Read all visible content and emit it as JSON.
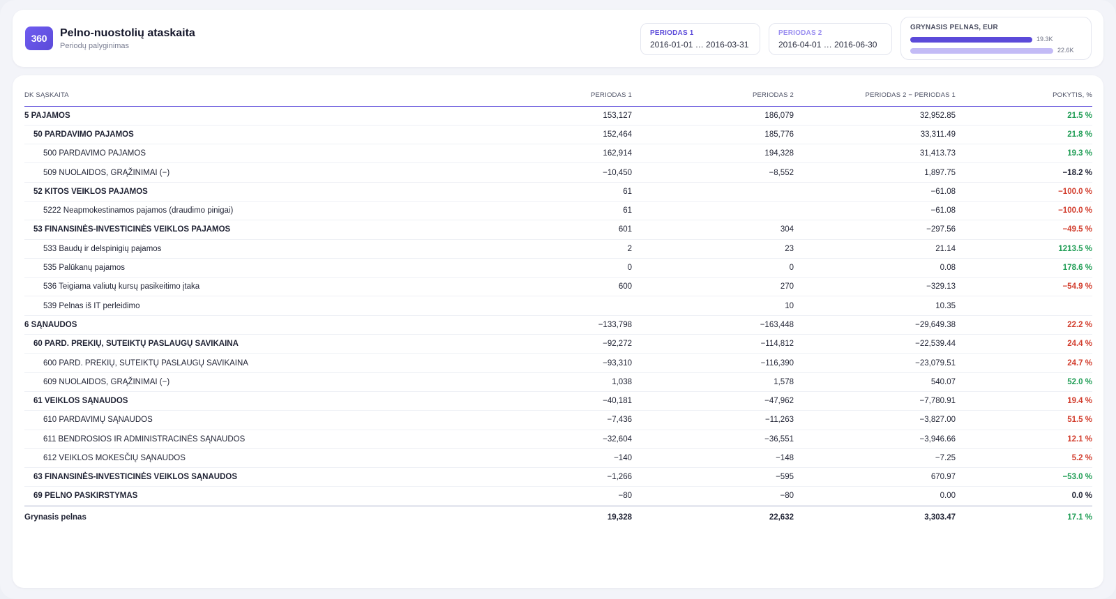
{
  "header": {
    "logo": "360",
    "title": "Pelno-nuostolių ataskaita",
    "subtitle": "Periodų palyginimas",
    "period1": {
      "label": "PERIODAS 1",
      "range": "2016-01-01 … 2016-03-31"
    },
    "period2": {
      "label": "PERIODAS 2",
      "range": "2016-04-01 … 2016-06-30"
    },
    "net_profit": {
      "label": "GRYNASIS PELNAS, EUR",
      "bars": [
        {
          "value_label": "19.3K",
          "value": 19328,
          "color": "#5b4ad9"
        },
        {
          "value_label": "22.6K",
          "value": 22632,
          "color": "#c3bbf6"
        }
      ]
    }
  },
  "colors": {
    "accent": "#5b4ad9",
    "accent_light": "#c3bbf6",
    "positive": "#1f9d55",
    "negative": "#d23c2c"
  },
  "table": {
    "columns": [
      "DK SĄSKAITA",
      "PERIODAS 1",
      "PERIODAS 2",
      "PERIODAS 2 − PERIODAS 1",
      "POKYTIS, %"
    ],
    "rows": [
      {
        "level": 1,
        "account": "5 PAJAMOS",
        "p1": "153,127",
        "p2": "186,079",
        "diff": "32,952.85",
        "pct": "21.5 %",
        "tone": "pos"
      },
      {
        "level": 2,
        "account": "50 PARDAVIMO PAJAMOS",
        "p1": "152,464",
        "p2": "185,776",
        "diff": "33,311.49",
        "pct": "21.8 %",
        "tone": "pos"
      },
      {
        "level": 3,
        "account": "500 PARDAVIMO PAJAMOS",
        "p1": "162,914",
        "p2": "194,328",
        "diff": "31,413.73",
        "pct": "19.3 %",
        "tone": "pos"
      },
      {
        "level": 3,
        "account": "509 NUOLAIDOS, GRĄŽINIMAI (−)",
        "p1": "−10,450",
        "p2": "−8,552",
        "diff": "1,897.75",
        "pct": "−18.2 %",
        "tone": "neutral"
      },
      {
        "level": 2,
        "account": "52 KITOS VEIKLOS PAJAMOS",
        "p1": "61",
        "p2": "",
        "diff": "−61.08",
        "pct": "−100.0 %",
        "tone": "neg"
      },
      {
        "level": 3,
        "account": "5222 Neapmokestinamos pajamos (draudimo pinigai)",
        "p1": "61",
        "p2": "",
        "diff": "−61.08",
        "pct": "−100.0 %",
        "tone": "neg"
      },
      {
        "level": 2,
        "account": "53 FINANSINĖS-INVESTICINĖS VEIKLOS PAJAMOS",
        "p1": "601",
        "p2": "304",
        "diff": "−297.56",
        "pct": "−49.5 %",
        "tone": "neg"
      },
      {
        "level": 3,
        "account": "533 Baudų ir delspinigių pajamos",
        "p1": "2",
        "p2": "23",
        "diff": "21.14",
        "pct": "1213.5 %",
        "tone": "pos"
      },
      {
        "level": 3,
        "account": "535 Palūkanų pajamos",
        "p1": "0",
        "p2": "0",
        "diff": "0.08",
        "pct": "178.6 %",
        "tone": "pos"
      },
      {
        "level": 3,
        "account": "536 Teigiama valiutų kursų pasikeitimo įtaka",
        "p1": "600",
        "p2": "270",
        "diff": "−329.13",
        "pct": "−54.9 %",
        "tone": "neg"
      },
      {
        "level": 3,
        "account": "539 Pelnas iš IT perleidimo",
        "p1": "",
        "p2": "10",
        "diff": "10.35",
        "pct": "",
        "tone": "neutral"
      },
      {
        "level": 1,
        "account": "6 SĄNAUDOS",
        "p1": "−133,798",
        "p2": "−163,448",
        "diff": "−29,649.38",
        "pct": "22.2 %",
        "tone": "neg"
      },
      {
        "level": 2,
        "account": "60 PARD. PREKIŲ, SUTEIKTŲ PASLAUGŲ SAVIKAINA",
        "p1": "−92,272",
        "p2": "−114,812",
        "diff": "−22,539.44",
        "pct": "24.4 %",
        "tone": "neg"
      },
      {
        "level": 3,
        "account": "600 PARD. PREKIŲ, SUTEIKTŲ PASLAUGŲ SAVIKAINA",
        "p1": "−93,310",
        "p2": "−116,390",
        "diff": "−23,079.51",
        "pct": "24.7 %",
        "tone": "neg"
      },
      {
        "level": 3,
        "account": "609 NUOLAIDOS, GRĄŽINIMAI (−)",
        "p1": "1,038",
        "p2": "1,578",
        "diff": "540.07",
        "pct": "52.0 %",
        "tone": "pos"
      },
      {
        "level": 2,
        "account": "61 VEIKLOS SĄNAUDOS",
        "p1": "−40,181",
        "p2": "−47,962",
        "diff": "−7,780.91",
        "pct": "19.4 %",
        "tone": "neg"
      },
      {
        "level": 3,
        "account": "610 PARDAVIMŲ SĄNAUDOS",
        "p1": "−7,436",
        "p2": "−11,263",
        "diff": "−3,827.00",
        "pct": "51.5 %",
        "tone": "neg"
      },
      {
        "level": 3,
        "account": "611 BENDROSIOS IR ADMINISTRACINĖS SĄNAUDOS",
        "p1": "−32,604",
        "p2": "−36,551",
        "diff": "−3,946.66",
        "pct": "12.1 %",
        "tone": "neg"
      },
      {
        "level": 3,
        "account": "612 VEIKLOS MOKESČIŲ SĄNAUDOS",
        "p1": "−140",
        "p2": "−148",
        "diff": "−7.25",
        "pct": "5.2 %",
        "tone": "neg"
      },
      {
        "level": 2,
        "account": "63 FINANSINĖS-INVESTICINĖS VEIKLOS SĄNAUDOS",
        "p1": "−1,266",
        "p2": "−595",
        "diff": "670.97",
        "pct": "−53.0 %",
        "tone": "pos"
      },
      {
        "level": 2,
        "account": "69 PELNO PASKIRSTYMAS",
        "p1": "−80",
        "p2": "−80",
        "diff": "0.00",
        "pct": "0.0 %",
        "tone": "neutral"
      }
    ],
    "total": {
      "account": "Grynasis pelnas",
      "p1": "19,328",
      "p2": "22,632",
      "diff": "3,303.47",
      "pct": "17.1 %",
      "tone": "pos"
    }
  }
}
